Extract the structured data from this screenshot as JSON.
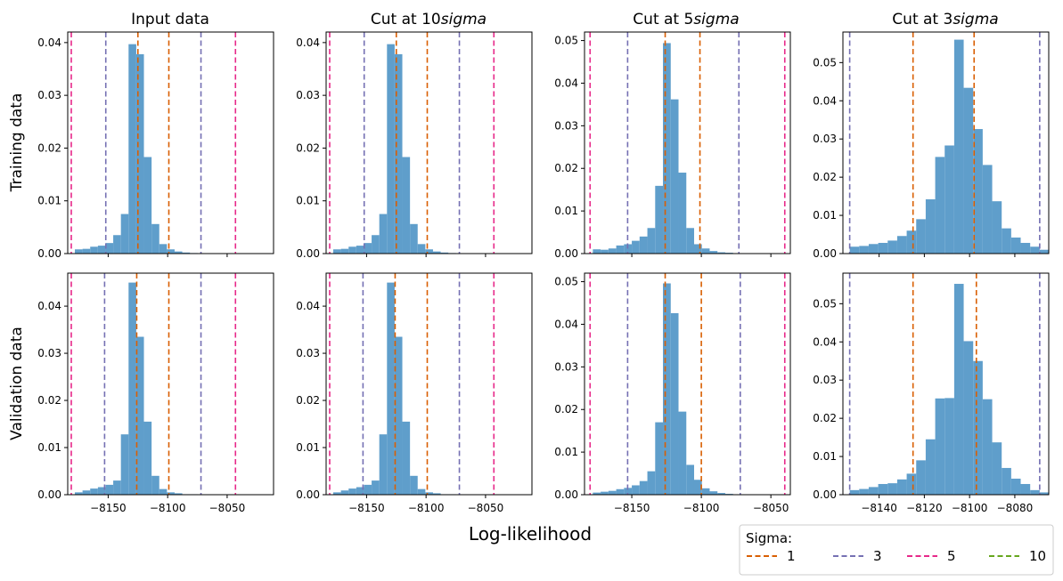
{
  "figure": {
    "column_titles": [
      "Input data",
      "Cut at 10",
      "Cut at 5",
      "Cut at 3"
    ],
    "column_title_suffix": "sigma",
    "row_labels": [
      "Training data",
      "Validation data"
    ],
    "xlabel": "Log-likelihood",
    "legend": {
      "title": "Sigma:",
      "entries": [
        {
          "label": "1",
          "color": "#d95f02"
        },
        {
          "label": "3",
          "color": "#7570b3"
        },
        {
          "label": "5",
          "color": "#e7298a"
        },
        {
          "label": "10",
          "color": "#66a61e"
        }
      ]
    },
    "bar_color": "#5f9ecb"
  },
  "chart_data": [
    {
      "type": "bar",
      "panel": "training-input",
      "row": 0,
      "col": 0,
      "title": "Input data",
      "ylabel": "Training data",
      "xlabel": "",
      "xlim": [
        -8184,
        -8011
      ],
      "ylim": [
        0,
        0.042
      ],
      "bin_width": 6.45,
      "first_bin": -8178,
      "values": [
        0.0008,
        0.0009,
        0.0013,
        0.0015,
        0.002,
        0.0035,
        0.0075,
        0.0397,
        0.0378,
        0.0183,
        0.0056,
        0.0018,
        0.0008,
        0.0004,
        0.0002,
        0.0001
      ],
      "sigma_lines": [
        {
          "sigma": 1,
          "x": [
            -8125,
            -8099
          ]
        },
        {
          "sigma": 3,
          "x": [
            -8152,
            -8072
          ]
        },
        {
          "sigma": 5,
          "x": [
            -8181,
            -8043
          ]
        }
      ],
      "xticks": [],
      "yticks": [
        0.0,
        0.01,
        0.02,
        0.03,
        0.04
      ],
      "ytick_labels": [
        "0.00",
        "0.01",
        "0.02",
        "0.03",
        "0.04"
      ]
    },
    {
      "type": "bar",
      "panel": "training-cut10",
      "row": 0,
      "col": 1,
      "title": "Cut at 10sigma",
      "xlabel": "",
      "xlim": [
        -8184,
        -8011
      ],
      "ylim": [
        0,
        0.042
      ],
      "bin_width": 6.45,
      "first_bin": -8178,
      "values": [
        0.0008,
        0.0009,
        0.0013,
        0.0015,
        0.002,
        0.0035,
        0.0075,
        0.0397,
        0.0378,
        0.0183,
        0.0056,
        0.0018,
        0.0008,
        0.0004,
        0.0002,
        0.0001
      ],
      "sigma_lines": [
        {
          "sigma": 1,
          "x": [
            -8125,
            -8099
          ]
        },
        {
          "sigma": 3,
          "x": [
            -8152,
            -8072
          ]
        },
        {
          "sigma": 5,
          "x": [
            -8181,
            -8043
          ]
        }
      ],
      "xticks": [],
      "yticks": [
        0.0,
        0.01,
        0.02,
        0.03,
        0.04
      ],
      "ytick_labels": [
        "0.00",
        "0.01",
        "0.02",
        "0.03",
        "0.04"
      ]
    },
    {
      "type": "bar",
      "panel": "training-cut5",
      "row": 0,
      "col": 2,
      "title": "Cut at 5sigma",
      "xlabel": "",
      "xlim": [
        -8184,
        -8036
      ],
      "ylim": [
        0,
        0.052
      ],
      "bin_width": 5.6,
      "first_bin": -8178,
      "values": [
        0.001,
        0.0009,
        0.0012,
        0.0019,
        0.0022,
        0.003,
        0.004,
        0.006,
        0.0159,
        0.0494,
        0.0362,
        0.019,
        0.006,
        0.0022,
        0.0012,
        0.0006,
        0.0003,
        0.0002,
        0.0001
      ],
      "sigma_lines": [
        {
          "sigma": 1,
          "x": [
            -8126,
            -8101
          ]
        },
        {
          "sigma": 3,
          "x": [
            -8153,
            -8073
          ]
        },
        {
          "sigma": 5,
          "x": [
            -8180,
            -8040
          ]
        }
      ],
      "xticks": [],
      "yticks": [
        0.0,
        0.01,
        0.02,
        0.03,
        0.04,
        0.05
      ],
      "ytick_labels": [
        "0.00",
        "0.01",
        "0.02",
        "0.03",
        "0.04",
        "0.05"
      ]
    },
    {
      "type": "bar",
      "panel": "training-cut3",
      "row": 0,
      "col": 3,
      "title": "Cut at 3sigma",
      "xlabel": "",
      "xlim": [
        -8156,
        -8065
      ],
      "ylim": [
        0,
        0.058
      ],
      "bin_width": 4.2,
      "first_bin": -8153,
      "values": [
        0.0018,
        0.002,
        0.0025,
        0.0028,
        0.0034,
        0.0046,
        0.006,
        0.009,
        0.0142,
        0.0253,
        0.0283,
        0.056,
        0.0434,
        0.0326,
        0.0232,
        0.0137,
        0.0066,
        0.0042,
        0.0028,
        0.0018,
        0.001
      ],
      "sigma_lines": [
        {
          "sigma": 1,
          "x": [
            -8125,
            -8098
          ]
        },
        {
          "sigma": 3,
          "x": [
            -8153,
            -8069
          ]
        }
      ],
      "xticks": [],
      "yticks": [
        0.0,
        0.01,
        0.02,
        0.03,
        0.04,
        0.05
      ],
      "ytick_labels": [
        "0.00",
        "0.01",
        "0.02",
        "0.03",
        "0.04",
        "0.05"
      ]
    },
    {
      "type": "bar",
      "panel": "validation-input",
      "row": 1,
      "col": 0,
      "ylabel": "Validation data",
      "xlabel": "",
      "xlim": [
        -8184,
        -8011
      ],
      "ylim": [
        0,
        0.047
      ],
      "bin_width": 6.45,
      "first_bin": -8178,
      "values": [
        0.0005,
        0.0009,
        0.0013,
        0.0016,
        0.0021,
        0.003,
        0.0128,
        0.045,
        0.0335,
        0.0155,
        0.004,
        0.0012,
        0.0005,
        0.0003,
        0.0001,
        0.0001
      ],
      "sigma_lines": [
        {
          "sigma": 1,
          "x": [
            -8126,
            -8099
          ]
        },
        {
          "sigma": 3,
          "x": [
            -8153,
            -8072
          ]
        },
        {
          "sigma": 5,
          "x": [
            -8181,
            -8043
          ]
        }
      ],
      "xticks": [
        -8150,
        -8100,
        -8050
      ],
      "xtick_labels": [
        "−8150",
        "−8100",
        "−8050"
      ],
      "yticks": [
        0.0,
        0.01,
        0.02,
        0.03,
        0.04
      ],
      "ytick_labels": [
        "0.00",
        "0.01",
        "0.02",
        "0.03",
        "0.04"
      ]
    },
    {
      "type": "bar",
      "panel": "validation-cut10",
      "row": 1,
      "col": 1,
      "xlabel": "",
      "xlim": [
        -8184,
        -8011
      ],
      "ylim": [
        0,
        0.047
      ],
      "bin_width": 6.45,
      "first_bin": -8178,
      "values": [
        0.0005,
        0.0009,
        0.0013,
        0.0016,
        0.0021,
        0.003,
        0.0128,
        0.045,
        0.0335,
        0.0155,
        0.004,
        0.0012,
        0.0005,
        0.0003,
        0.0001,
        0.0001
      ],
      "sigma_lines": [
        {
          "sigma": 1,
          "x": [
            -8126,
            -8099
          ]
        },
        {
          "sigma": 3,
          "x": [
            -8153,
            -8072
          ]
        },
        {
          "sigma": 5,
          "x": [
            -8181,
            -8043
          ]
        }
      ],
      "xticks": [
        -8150,
        -8100,
        -8050
      ],
      "xtick_labels": [
        "−8150",
        "−8100",
        "−8050"
      ],
      "yticks": [
        0.0,
        0.01,
        0.02,
        0.03,
        0.04
      ],
      "ytick_labels": [
        "0.00",
        "0.01",
        "0.02",
        "0.03",
        "0.04"
      ]
    },
    {
      "type": "bar",
      "panel": "validation-cut5",
      "row": 1,
      "col": 2,
      "xlabel": "",
      "xlim": [
        -8184,
        -8036
      ],
      "ylim": [
        0,
        0.052
      ],
      "bin_width": 5.6,
      "first_bin": -8178,
      "values": [
        0.0005,
        0.0007,
        0.0009,
        0.0013,
        0.0016,
        0.0022,
        0.0032,
        0.0055,
        0.017,
        0.0496,
        0.0426,
        0.0195,
        0.007,
        0.0035,
        0.0015,
        0.0008,
        0.0004,
        0.0002,
        0.0001
      ],
      "sigma_lines": [
        {
          "sigma": 1,
          "x": [
            -8126,
            -8100
          ]
        },
        {
          "sigma": 3,
          "x": [
            -8153,
            -8072
          ]
        },
        {
          "sigma": 5,
          "x": [
            -8180,
            -8040
          ]
        }
      ],
      "xticks": [
        -8150,
        -8100,
        -8050
      ],
      "xtick_labels": [
        "−8150",
        "−8100",
        "−8050"
      ],
      "yticks": [
        0.0,
        0.01,
        0.02,
        0.03,
        0.04,
        0.05
      ],
      "ytick_labels": [
        "0.00",
        "0.01",
        "0.02",
        "0.03",
        "0.04",
        "0.05"
      ]
    },
    {
      "type": "bar",
      "panel": "validation-cut3",
      "row": 1,
      "col": 3,
      "xlabel": "",
      "xlim": [
        -8156,
        -8065
      ],
      "ylim": [
        0,
        0.058
      ],
      "bin_width": 4.2,
      "first_bin": -8153,
      "values": [
        0.0012,
        0.0015,
        0.002,
        0.0028,
        0.003,
        0.004,
        0.0055,
        0.009,
        0.0145,
        0.0252,
        0.0253,
        0.0552,
        0.0402,
        0.035,
        0.025,
        0.0137,
        0.007,
        0.0042,
        0.0028,
        0.0012,
        0.0006
      ],
      "sigma_lines": [
        {
          "sigma": 1,
          "x": [
            -8125,
            -8097
          ]
        },
        {
          "sigma": 3,
          "x": [
            -8153,
            -8069
          ]
        }
      ],
      "xticks": [
        -8140,
        -8120,
        -8100,
        -8080
      ],
      "xtick_labels": [
        "−8140",
        "−8120",
        "−8100",
        "−8080"
      ],
      "yticks": [
        0.0,
        0.01,
        0.02,
        0.03,
        0.04,
        0.05
      ],
      "ytick_labels": [
        "0.00",
        "0.01",
        "0.02",
        "0.03",
        "0.04",
        "0.05"
      ]
    }
  ]
}
